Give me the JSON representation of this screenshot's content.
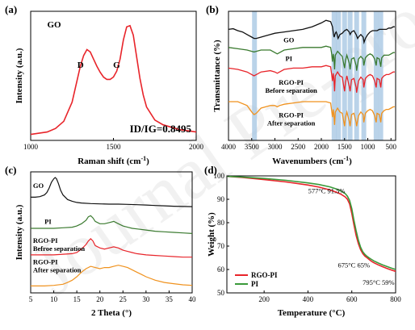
{
  "watermark": "Journal Pre-proof",
  "chart_data": [
    {
      "panel_label": "(a)",
      "type": "line",
      "xlabel": "Raman shift (cm",
      "xlabel_sup": "-1",
      "xlabel_end": ")",
      "ylabel": "Intensity (a.u.)",
      "xlim": [
        1000,
        2000
      ],
      "xticks": [
        "1000",
        "1500",
        "2000"
      ],
      "yticks": [],
      "sample_label": "GO",
      "annotations": [
        "D",
        "G",
        "ID/IG=0.8495"
      ],
      "series": [
        {
          "color": "#e8242a",
          "x": [
            1000,
            1050,
            1100,
            1150,
            1200,
            1250,
            1280,
            1300,
            1320,
            1340,
            1360,
            1380,
            1400,
            1420,
            1440,
            1460,
            1480,
            1500,
            1520,
            1540,
            1560,
            1580,
            1600,
            1620,
            1640,
            1660,
            1680,
            1700,
            1750,
            1800,
            1850,
            1900,
            1950,
            2000
          ],
          "y": [
            0.05,
            0.06,
            0.07,
            0.1,
            0.16,
            0.32,
            0.5,
            0.62,
            0.71,
            0.76,
            0.74,
            0.68,
            0.62,
            0.57,
            0.53,
            0.51,
            0.51,
            0.53,
            0.58,
            0.68,
            0.84,
            0.95,
            0.96,
            0.88,
            0.7,
            0.52,
            0.38,
            0.28,
            0.17,
            0.13,
            0.11,
            0.09,
            0.08,
            0.07
          ]
        }
      ]
    },
    {
      "panel_label": "(b)",
      "type": "line",
      "xlabel": "Wavenumbers (cm",
      "xlabel_sup": "-1",
      "xlabel_end": ")",
      "ylabel": "Transmittance (%)",
      "xlim": [
        4000,
        400
      ],
      "xticks": [
        "4000",
        "3500",
        "3000",
        "2500",
        "2000",
        "1500",
        "1000",
        "500"
      ],
      "yticks": [],
      "highlight_bands": [
        3440,
        1725,
        1630,
        1500,
        1380,
        1240,
        1085,
        820,
        720
      ],
      "series": [
        {
          "name": "GO",
          "color": "#111111",
          "label_sub": "",
          "x": [
            4000,
            3900,
            3800,
            3700,
            3600,
            3500,
            3450,
            3400,
            3300,
            3200,
            3100,
            3000,
            2900,
            2800,
            2600,
            2400,
            2200,
            2000,
            1900,
            1800,
            1760,
            1740,
            1725,
            1700,
            1680,
            1660,
            1640,
            1625,
            1600,
            1550,
            1500,
            1450,
            1400,
            1380,
            1350,
            1300,
            1250,
            1220,
            1200,
            1150,
            1100,
            1080,
            1050,
            1000,
            950,
            900,
            850,
            800,
            750,
            700,
            650,
            600,
            550,
            500,
            450,
            420
          ],
          "y": [
            0.86,
            0.865,
            0.85,
            0.84,
            0.82,
            0.8,
            0.79,
            0.79,
            0.8,
            0.81,
            0.82,
            0.83,
            0.835,
            0.84,
            0.85,
            0.86,
            0.88,
            0.91,
            0.93,
            0.92,
            0.88,
            0.83,
            0.8,
            0.83,
            0.84,
            0.82,
            0.79,
            0.8,
            0.82,
            0.83,
            0.85,
            0.86,
            0.84,
            0.82,
            0.84,
            0.85,
            0.82,
            0.79,
            0.8,
            0.82,
            0.8,
            0.76,
            0.79,
            0.82,
            0.84,
            0.85,
            0.85,
            0.85,
            0.86,
            0.86,
            0.86,
            0.86,
            0.87,
            0.87,
            0.88,
            0.88
          ]
        },
        {
          "name": "PI",
          "color": "#3a7a2f",
          "label_sub": "",
          "x": [
            4000,
            3800,
            3600,
            3500,
            3450,
            3400,
            3300,
            3100,
            3000,
            2950,
            2900,
            2800,
            2600,
            2400,
            2200,
            2000,
            1900,
            1800,
            1780,
            1760,
            1745,
            1730,
            1715,
            1700,
            1650,
            1600,
            1550,
            1500,
            1480,
            1450,
            1400,
            1380,
            1350,
            1300,
            1250,
            1240,
            1200,
            1150,
            1100,
            1085,
            1050,
            1000,
            950,
            900,
            850,
            820,
            800,
            750,
            720,
            700,
            650,
            600,
            550,
            500,
            450,
            420
          ],
          "y": [
            0.72,
            0.71,
            0.7,
            0.69,
            0.685,
            0.69,
            0.7,
            0.7,
            0.68,
            0.67,
            0.68,
            0.7,
            0.71,
            0.72,
            0.72,
            0.72,
            0.73,
            0.72,
            0.68,
            0.61,
            0.67,
            0.64,
            0.55,
            0.66,
            0.69,
            0.67,
            0.65,
            0.56,
            0.62,
            0.66,
            0.6,
            0.55,
            0.63,
            0.64,
            0.58,
            0.54,
            0.63,
            0.65,
            0.63,
            0.58,
            0.64,
            0.66,
            0.67,
            0.66,
            0.63,
            0.58,
            0.64,
            0.63,
            0.57,
            0.64,
            0.66,
            0.66,
            0.66,
            0.67,
            0.68,
            0.68
          ]
        },
        {
          "name": "RGO-PI",
          "color": "#e8242a",
          "label_sub": "Before separation",
          "x": [
            4000,
            3800,
            3600,
            3500,
            3450,
            3400,
            3300,
            3100,
            3000,
            2950,
            2900,
            2800,
            2600,
            2400,
            2200,
            2000,
            1900,
            1800,
            1780,
            1760,
            1745,
            1730,
            1715,
            1700,
            1650,
            1600,
            1550,
            1500,
            1480,
            1450,
            1400,
            1380,
            1350,
            1300,
            1250,
            1240,
            1200,
            1150,
            1100,
            1085,
            1050,
            1000,
            950,
            900,
            850,
            820,
            800,
            750,
            720,
            700,
            650,
            600,
            550,
            500,
            450,
            420
          ],
          "y": [
            0.56,
            0.55,
            0.53,
            0.51,
            0.5,
            0.51,
            0.53,
            0.54,
            0.53,
            0.52,
            0.53,
            0.55,
            0.56,
            0.56,
            0.57,
            0.57,
            0.58,
            0.57,
            0.52,
            0.46,
            0.52,
            0.48,
            0.38,
            0.5,
            0.53,
            0.5,
            0.49,
            0.38,
            0.45,
            0.5,
            0.42,
            0.38,
            0.47,
            0.48,
            0.41,
            0.37,
            0.46,
            0.49,
            0.47,
            0.41,
            0.48,
            0.5,
            0.51,
            0.5,
            0.46,
            0.41,
            0.48,
            0.47,
            0.41,
            0.48,
            0.5,
            0.51,
            0.51,
            0.52,
            0.53,
            0.53
          ]
        },
        {
          "name": "RGO-PI",
          "color": "#f0921e",
          "label_sub": "After separation",
          "x": [
            4000,
            3800,
            3600,
            3500,
            3450,
            3400,
            3300,
            3100,
            3000,
            2950,
            2900,
            2800,
            2600,
            2400,
            2200,
            2000,
            1900,
            1800,
            1780,
            1760,
            1745,
            1730,
            1715,
            1700,
            1650,
            1600,
            1550,
            1500,
            1480,
            1450,
            1400,
            1380,
            1350,
            1300,
            1250,
            1240,
            1200,
            1150,
            1100,
            1085,
            1050,
            1000,
            950,
            900,
            850,
            820,
            800,
            750,
            720,
            700,
            650,
            600,
            550,
            500,
            450,
            420
          ],
          "y": [
            0.3,
            0.3,
            0.27,
            0.22,
            0.2,
            0.21,
            0.25,
            0.27,
            0.27,
            0.26,
            0.27,
            0.28,
            0.29,
            0.3,
            0.3,
            0.3,
            0.3,
            0.29,
            0.24,
            0.18,
            0.24,
            0.2,
            0.12,
            0.22,
            0.25,
            0.22,
            0.21,
            0.11,
            0.18,
            0.22,
            0.15,
            0.11,
            0.2,
            0.21,
            0.14,
            0.11,
            0.19,
            0.22,
            0.2,
            0.14,
            0.21,
            0.23,
            0.24,
            0.23,
            0.19,
            0.14,
            0.21,
            0.2,
            0.14,
            0.21,
            0.23,
            0.24,
            0.24,
            0.25,
            0.26,
            0.26
          ]
        }
      ]
    },
    {
      "panel_label": "(c)",
      "type": "line",
      "xlabel": "2 Theta (°)",
      "ylabel": "Intensity (a.u.)",
      "xlim": [
        5,
        40
      ],
      "xticks": [
        "5",
        "10",
        "15",
        "20",
        "25",
        "30",
        "35",
        "40"
      ],
      "yticks": [],
      "series": [
        {
          "name": "GO",
          "color": "#111111",
          "label_sub": "",
          "x": [
            5,
            6,
            7,
            8,
            8.5,
            9,
            9.5,
            10,
            10.3,
            10.6,
            11,
            11.5,
            12,
            13,
            14,
            15,
            16,
            18,
            20,
            22,
            24,
            26,
            28,
            30,
            32,
            34,
            36,
            38,
            40
          ],
          "y": [
            0.83,
            0.83,
            0.835,
            0.85,
            0.87,
            0.91,
            0.96,
            0.99,
            1.0,
            0.99,
            0.95,
            0.89,
            0.85,
            0.81,
            0.795,
            0.785,
            0.78,
            0.775,
            0.772,
            0.77,
            0.77,
            0.768,
            0.765,
            0.762,
            0.758,
            0.755,
            0.752,
            0.75,
            0.748
          ]
        },
        {
          "name": "PI",
          "color": "#3a7a2f",
          "label_sub": "",
          "x": [
            5,
            8,
            10,
            12,
            14,
            15,
            16,
            17,
            17.5,
            18,
            18.5,
            19,
            20,
            21,
            22,
            23,
            24,
            25,
            26,
            27,
            28,
            30,
            32,
            34,
            36,
            38,
            40
          ],
          "y": [
            0.56,
            0.56,
            0.56,
            0.565,
            0.57,
            0.58,
            0.6,
            0.63,
            0.66,
            0.67,
            0.65,
            0.62,
            0.6,
            0.6,
            0.61,
            0.62,
            0.6,
            0.58,
            0.57,
            0.56,
            0.555,
            0.545,
            0.535,
            0.53,
            0.525,
            0.52,
            0.515
          ]
        },
        {
          "name": "RGO-PI",
          "color": "#e8242a",
          "label_sub": "Befroe separation",
          "x": [
            5,
            8,
            10,
            12,
            14,
            15,
            16,
            17,
            17.5,
            18,
            18.5,
            19,
            20,
            21,
            22,
            23,
            24,
            25,
            26,
            27,
            28,
            30,
            32,
            34,
            36,
            38,
            40
          ],
          "y": [
            0.33,
            0.33,
            0.33,
            0.335,
            0.34,
            0.35,
            0.38,
            0.42,
            0.45,
            0.47,
            0.45,
            0.41,
            0.39,
            0.38,
            0.39,
            0.4,
            0.39,
            0.37,
            0.36,
            0.35,
            0.34,
            0.33,
            0.325,
            0.32,
            0.315,
            0.31,
            0.31
          ]
        },
        {
          "name": "RGO-PI",
          "color": "#f0921e",
          "label_sub": "After separation",
          "x": [
            5,
            8,
            10,
            12,
            13,
            14,
            15,
            16,
            17,
            18,
            19,
            20,
            21,
            22,
            23,
            24,
            25,
            26,
            27,
            28,
            29,
            30,
            32,
            34,
            36,
            38,
            40
          ],
          "y": [
            0.06,
            0.06,
            0.065,
            0.075,
            0.09,
            0.11,
            0.14,
            0.18,
            0.21,
            0.23,
            0.22,
            0.21,
            0.22,
            0.22,
            0.23,
            0.24,
            0.23,
            0.22,
            0.2,
            0.18,
            0.16,
            0.14,
            0.11,
            0.09,
            0.08,
            0.07,
            0.065
          ]
        }
      ]
    },
    {
      "panel_label": "(d)",
      "type": "line",
      "xlabel": "Temperature (°C)",
      "ylabel": "Weight (%)",
      "xlim": [
        30,
        800
      ],
      "ylim": [
        50,
        100
      ],
      "xticks": [
        "200",
        "400",
        "600",
        "800"
      ],
      "xtick_values": [
        200,
        400,
        600,
        800
      ],
      "yticks": [
        "50",
        "60",
        "70",
        "80",
        "90",
        "100"
      ],
      "ytick_values": [
        50,
        60,
        70,
        80,
        90,
        100
      ],
      "legend_position": "bottom-left",
      "annotations": [
        {
          "text": "577°C  91.5%",
          "x": 577,
          "y": 91.5
        },
        {
          "text": "675°C   65%",
          "x": 675,
          "y": 65
        },
        {
          "text": "795°C  59%",
          "x": 795,
          "y": 59
        }
      ],
      "series": [
        {
          "name": "RGO-PI",
          "color": "#e8242a",
          "x": [
            30,
            100,
            200,
            300,
            400,
            450,
            500,
            530,
            550,
            570,
            580,
            590,
            600,
            610,
            620,
            630,
            640,
            650,
            660,
            670,
            680,
            690,
            700,
            720,
            740,
            760,
            780,
            800
          ],
          "y": [
            99.8,
            99.3,
            98.4,
            97.4,
            96.1,
            95.2,
            94.0,
            93.0,
            92.2,
            91.0,
            90.0,
            88.0,
            84.0,
            79.0,
            74.5,
            71.0,
            68.5,
            66.8,
            65.7,
            65.0,
            64.2,
            63.5,
            62.9,
            62.0,
            61.2,
            60.5,
            59.8,
            59.2
          ]
        },
        {
          "name": "PI",
          "color": "#3a9a3a",
          "x": [
            30,
            100,
            200,
            300,
            400,
            450,
            500,
            530,
            550,
            570,
            580,
            590,
            600,
            610,
            620,
            630,
            640,
            650,
            660,
            670,
            680,
            690,
            700,
            720,
            740,
            760,
            780,
            800
          ],
          "y": [
            99.8,
            99.5,
            98.9,
            98.1,
            97.0,
            96.3,
            95.3,
            94.4,
            93.6,
            92.4,
            91.3,
            89.5,
            86.0,
            81.0,
            76.5,
            72.5,
            69.5,
            67.6,
            66.4,
            65.6,
            64.9,
            64.3,
            63.7,
            62.8,
            62.0,
            61.3,
            60.6,
            60.0
          ]
        }
      ]
    }
  ]
}
